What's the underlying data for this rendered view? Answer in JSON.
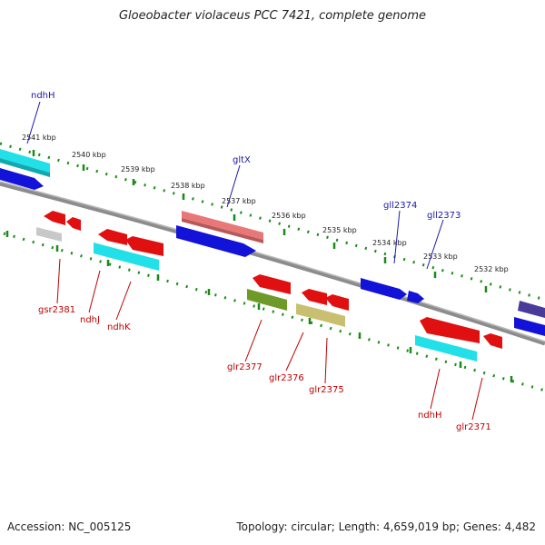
{
  "title": "Gloeobacter violaceus PCC 7421, complete genome",
  "footer": {
    "accession": "Accession: NC_005125",
    "summary": "Topology: circular; Length: 4,659,019 bp; Genes: 4,482"
  },
  "scale_labels": [
    "2541 kbp",
    "2540 kbp",
    "2539 kbp",
    "2538 kbp",
    "2537 kbp",
    "2536 kbp",
    "2535 kbp",
    "2534 kbp",
    "2533 kbp",
    "2532 kbp"
  ],
  "top_gene_labels": [
    "ndhH",
    "gltX",
    "gll2374",
    "gll2373"
  ],
  "bottom_gene_labels": [
    "gsr2381",
    "ndhJ",
    "ndhK",
    "glr2377",
    "glr2376",
    "glr2375",
    "ndhH",
    "glr2371"
  ],
  "colors": {
    "backbone": "#8c8c8c",
    "dots": "#1a8a1a",
    "top_label": "#1a1aa8",
    "bottom_label": "#c00000",
    "cyan": "#22e0e8",
    "blue": "#1212d8",
    "red": "#e01010",
    "salmon": "#e87878",
    "olive": "#6e9a28",
    "khaki": "#c8c070",
    "gray": "#c8c8c8",
    "indigo": "#4a3a9a"
  }
}
